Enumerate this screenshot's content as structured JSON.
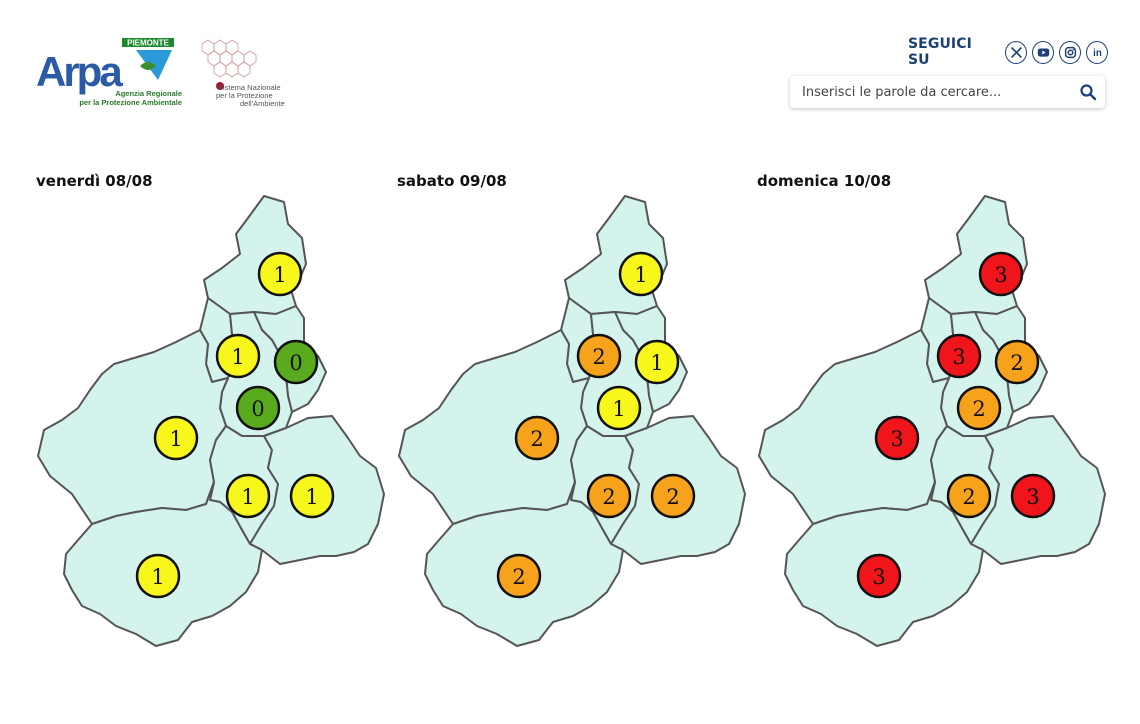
{
  "header": {
    "logo_arpa": {
      "badge": "PIEMONTE",
      "wordmark": "Arpa",
      "line1": "Agenzia Regionale",
      "line2": "per la Protezione Ambientale"
    },
    "logo_snpa": {
      "line1": "Sistema Nazionale",
      "line2": "per la Protezione",
      "line3": "dell'Ambiente"
    },
    "social_label": "SEGUICI SU",
    "social_icons": [
      "x-icon",
      "youtube-icon",
      "instagram-icon",
      "linkedin-icon"
    ],
    "search_placeholder": "Inserisci le parole da cercare..."
  },
  "level_colors": {
    "0": "#5aaa1e",
    "1": "#f7f71c",
    "2": "#f7a21b",
    "3": "#f0141b"
  },
  "maps": [
    {
      "day": "venerdì 08/08",
      "levels": [
        1,
        1,
        0,
        0,
        1,
        1,
        1,
        1
      ]
    },
    {
      "day": "sabato 09/08",
      "levels": [
        1,
        2,
        1,
        1,
        2,
        2,
        2,
        2
      ]
    },
    {
      "day": "domenica 10/08",
      "levels": [
        3,
        3,
        2,
        2,
        3,
        2,
        3,
        3
      ]
    }
  ]
}
